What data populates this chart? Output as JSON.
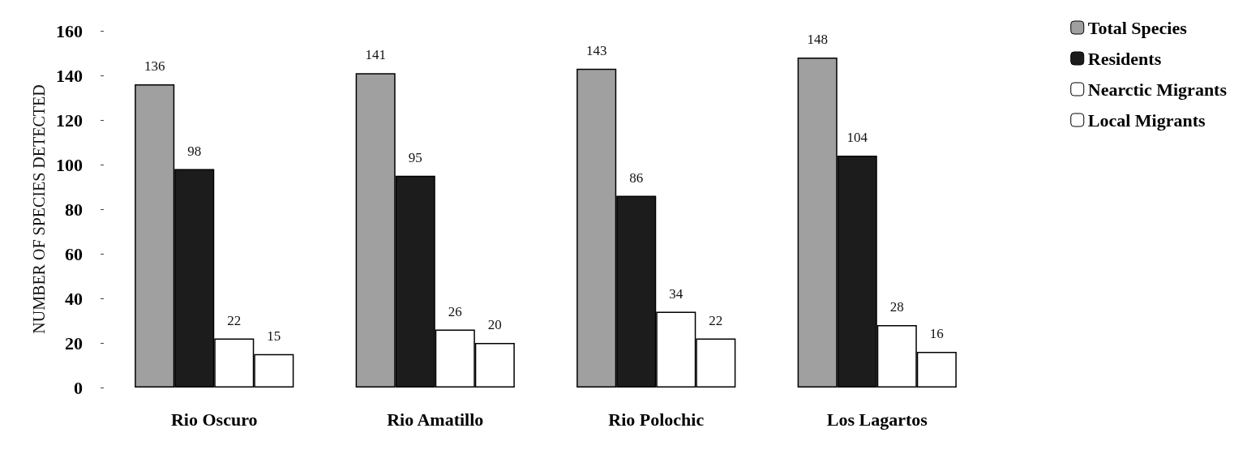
{
  "chart_data": {
    "type": "bar",
    "ylabel": "NUMBER OF SPECIES DETECTED",
    "categories": [
      "Rio Oscuro",
      "Rio Amatillo",
      "Rio Polochic",
      "Los Lagartos"
    ],
    "series": [
      {
        "name": "Total Species",
        "color": "#a0a0a0",
        "values": [
          136,
          141,
          143,
          148
        ]
      },
      {
        "name": "Residents",
        "color": "#1c1c1c",
        "values": [
          98,
          95,
          86,
          104
        ]
      },
      {
        "name": "Nearctic Migrants",
        "color": "#ffffff",
        "values": [
          22,
          26,
          34,
          28
        ]
      },
      {
        "name": "Local Migrants",
        "color": "#ffffff",
        "values": [
          15,
          20,
          22,
          16
        ]
      }
    ],
    "ylim": [
      0,
      160
    ],
    "yticks": [
      0,
      20,
      40,
      60,
      80,
      100,
      120,
      140,
      160
    ],
    "data_labels": true,
    "grid": false,
    "legend": "top right"
  }
}
